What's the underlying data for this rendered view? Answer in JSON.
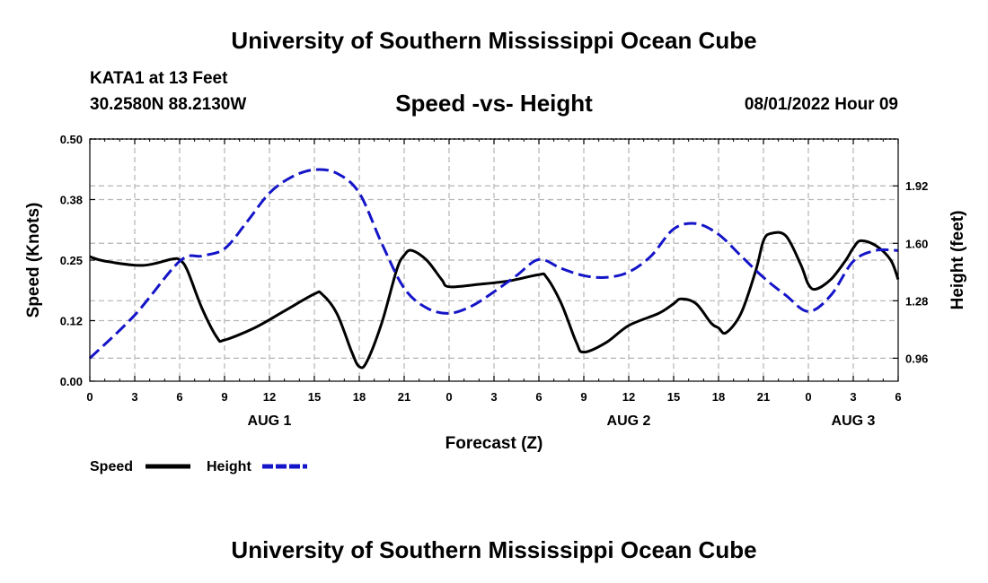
{
  "header": {
    "title": "University of Southern Mississippi Ocean Cube",
    "station": "KATA1 at 13 Feet",
    "coords": "30.2580N  88.2130W",
    "datetime": "08/01/2022 Hour 09",
    "footer_title": "University of Southern Mississippi Ocean Cube"
  },
  "colors": {
    "speed": "#000000",
    "height": "#1414c8",
    "grid": "#b4b4b4"
  },
  "chart_data": {
    "type": "line",
    "title": "Speed -vs- Height",
    "xlabel": "Forecast (Z)",
    "ylabel": "Speed (Knots)",
    "y2label": "Height (feet)",
    "xlim": [
      0,
      54
    ],
    "ylim": [
      0,
      0.5
    ],
    "y2lim": [
      0.832,
      2.181
    ],
    "x_tick_values": [
      0,
      3,
      6,
      9,
      12,
      15,
      18,
      21,
      24,
      27,
      30,
      33,
      36,
      39,
      42,
      45,
      48,
      51,
      54
    ],
    "x_tick_labels": [
      "0",
      "3",
      "6",
      "9",
      "12",
      "15",
      "18",
      "21",
      "0",
      "3",
      "6",
      "9",
      "12",
      "15",
      "18",
      "21",
      "0",
      "3",
      "6"
    ],
    "y_ticks": [
      {
        "value": 0.0,
        "label": "0.00"
      },
      {
        "value": 0.125,
        "label": "0.12"
      },
      {
        "value": 0.25,
        "label": "0.25"
      },
      {
        "value": 0.375,
        "label": "0.38"
      },
      {
        "value": 0.5,
        "label": "0.50"
      }
    ],
    "y2_ticks": [
      {
        "value": 0.96,
        "label": "0.96"
      },
      {
        "value": 1.28,
        "label": "1.28"
      },
      {
        "value": 1.6,
        "label": "1.60"
      },
      {
        "value": 1.92,
        "label": "1.92"
      }
    ],
    "day_labels": [
      {
        "x": 12,
        "label": "AUG 1"
      },
      {
        "x": 36,
        "label": "AUG 2"
      },
      {
        "x": 51,
        "label": "AUG 3"
      }
    ],
    "grid": true,
    "legend_position": "bottom-left",
    "series": [
      {
        "name": "Speed",
        "axis": "left",
        "style": "solid",
        "x": [
          0,
          1,
          3.5,
          5.5,
          6,
          6.5,
          7.5,
          8.5,
          9,
          11,
          13,
          15,
          15.5,
          16.5,
          17.5,
          18,
          18.5,
          19.5,
          20.5,
          21,
          21.5,
          22.5,
          23.5,
          24,
          26,
          28,
          30,
          30.5,
          31.5,
          32.5,
          33,
          34.5,
          36,
          38,
          39,
          39.5,
          40.5,
          41.5,
          42,
          42.5,
          43.5,
          44.5,
          45,
          45.5,
          46.5,
          47.5,
          48,
          48.5,
          49.5,
          50.5,
          51,
          51.5,
          52.5,
          53.5,
          54
        ],
        "values": [
          0.257,
          0.248,
          0.239,
          0.252,
          0.25,
          0.23,
          0.15,
          0.09,
          0.085,
          0.11,
          0.145,
          0.18,
          0.18,
          0.14,
          0.06,
          0.03,
          0.04,
          0.12,
          0.23,
          0.26,
          0.27,
          0.25,
          0.21,
          0.195,
          0.2,
          0.207,
          0.22,
          0.215,
          0.16,
          0.08,
          0.06,
          0.08,
          0.115,
          0.14,
          0.16,
          0.17,
          0.16,
          0.12,
          0.11,
          0.1,
          0.14,
          0.23,
          0.29,
          0.305,
          0.3,
          0.24,
          0.2,
          0.19,
          0.21,
          0.25,
          0.275,
          0.29,
          0.28,
          0.25,
          0.21
        ]
      },
      {
        "name": "Height",
        "axis": "right",
        "style": "dashed",
        "x": [
          0,
          3,
          6,
          7.5,
          9,
          10.5,
          12,
          13.5,
          15,
          16.5,
          18,
          19.5,
          21,
          22.5,
          24,
          25.5,
          27,
          28.5,
          30,
          31.5,
          33,
          34.5,
          36,
          37.5,
          39,
          40.5,
          42,
          43.5,
          45,
          46.5,
          48,
          49.5,
          51,
          52.5,
          54
        ],
        "values": [
          0.96,
          1.2,
          1.5,
          1.53,
          1.57,
          1.72,
          1.88,
          1.97,
          2.01,
          1.99,
          1.88,
          1.6,
          1.35,
          1.24,
          1.21,
          1.25,
          1.33,
          1.42,
          1.51,
          1.46,
          1.42,
          1.41,
          1.44,
          1.53,
          1.68,
          1.71,
          1.65,
          1.53,
          1.41,
          1.31,
          1.22,
          1.31,
          1.5,
          1.56,
          1.56
        ]
      }
    ]
  }
}
